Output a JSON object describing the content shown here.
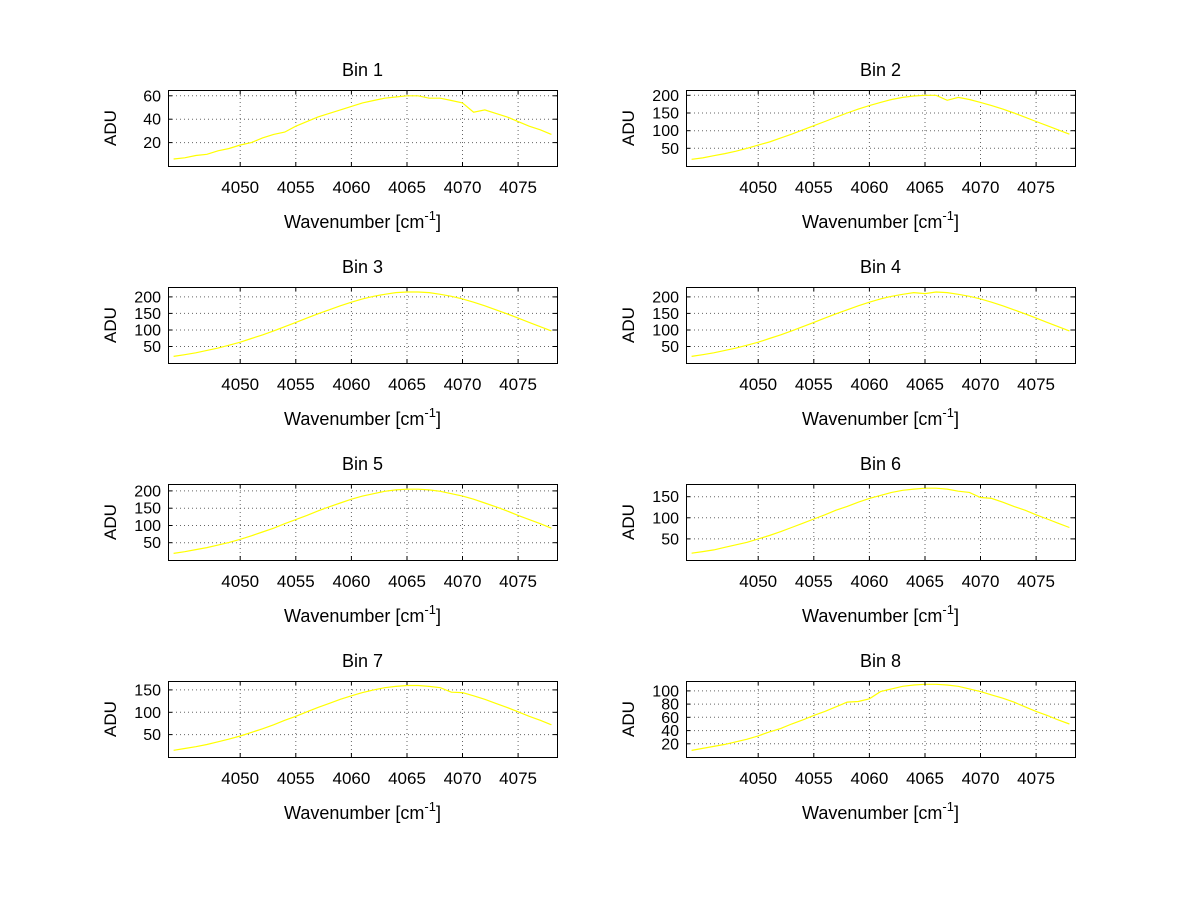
{
  "colors": {
    "background": "#ffffff",
    "line": "#ffff00",
    "axis": "#000000",
    "grid": "#666666",
    "text": "#000000"
  },
  "chart_data": {
    "type": "line",
    "layout": "4 rows x 2 columns of subplots, grid on, dotted gridlines, yellow data line",
    "ylabel": "ADU",
    "xlabel": {
      "text": "Wavenumber [cm",
      "superscript": "-1",
      "suffix": "]"
    },
    "xlim": [
      4043.5,
      4078.5
    ],
    "xticks": [
      4050,
      4055,
      4060,
      4065,
      4070,
      4075
    ],
    "x": [
      4044,
      4045,
      4046,
      4047,
      4048,
      4049,
      4050,
      4051,
      4052,
      4053,
      4054,
      4055,
      4056,
      4057,
      4058,
      4059,
      4060,
      4061,
      4062,
      4063,
      4064,
      4065,
      4066,
      4067,
      4068,
      4069,
      4070,
      4071,
      4072,
      4073,
      4074,
      4075,
      4076,
      4077,
      4078
    ],
    "subplots": [
      {
        "title": "Bin 1",
        "ylim": [
          0,
          65
        ],
        "yticks": [
          20,
          40,
          60
        ],
        "values": [
          6,
          7,
          9,
          10,
          13,
          15,
          18,
          20,
          24,
          27,
          29,
          34,
          38,
          42,
          45,
          48,
          51,
          54,
          56,
          58,
          59,
          60,
          60,
          58,
          58,
          56,
          54,
          46,
          48,
          45,
          42,
          38,
          34,
          31,
          27
        ]
      },
      {
        "title": "Bin 2",
        "ylim": [
          0,
          215
        ],
        "yticks": [
          50,
          100,
          150,
          200
        ],
        "values": [
          19,
          23,
          29,
          35,
          42,
          50,
          59,
          68,
          79,
          90,
          102,
          114,
          126,
          138,
          150,
          161,
          171,
          180,
          188,
          194,
          198,
          200,
          200,
          186,
          194,
          188,
          180,
          171,
          161,
          150,
          138,
          126,
          114,
          102,
          90
        ]
      },
      {
        "title": "Bin 3",
        "ylim": [
          0,
          230
        ],
        "yticks": [
          50,
          100,
          150,
          200
        ],
        "values": [
          20,
          25,
          31,
          38,
          45,
          54,
          63,
          74,
          85,
          97,
          110,
          123,
          136,
          149,
          161,
          173,
          184,
          194,
          202,
          208,
          213,
          215,
          215,
          213,
          208,
          202,
          194,
          184,
          173,
          161,
          149,
          136,
          123,
          110,
          97
        ]
      },
      {
        "title": "Bin 4",
        "ylim": [
          0,
          230
        ],
        "yticks": [
          50,
          100,
          150,
          200
        ],
        "values": [
          20,
          25,
          31,
          38,
          45,
          54,
          63,
          74,
          85,
          97,
          110,
          123,
          136,
          149,
          161,
          173,
          184,
          194,
          202,
          208,
          213,
          210,
          215,
          213,
          208,
          202,
          194,
          184,
          173,
          161,
          149,
          136,
          123,
          110,
          97
        ]
      },
      {
        "title": "Bin 5",
        "ylim": [
          0,
          220
        ],
        "yticks": [
          50,
          100,
          150,
          200
        ],
        "values": [
          19,
          24,
          30,
          36,
          43,
          51,
          60,
          70,
          81,
          92,
          105,
          117,
          129,
          142,
          154,
          165,
          176,
          185,
          192,
          199,
          203,
          205,
          205,
          203,
          199,
          192,
          185,
          176,
          165,
          154,
          142,
          129,
          117,
          105,
          92
        ]
      },
      {
        "title": "Bin 6",
        "ylim": [
          0,
          180
        ],
        "yticks": [
          50,
          100,
          150
        ],
        "values": [
          16,
          20,
          24,
          30,
          36,
          42,
          50,
          58,
          67,
          77,
          87,
          97,
          107,
          118,
          127,
          137,
          146,
          153,
          160,
          165,
          168,
          170,
          170,
          168,
          163,
          160,
          148,
          146,
          137,
          127,
          118,
          107,
          97,
          87,
          77
        ]
      },
      {
        "title": "Bin 7",
        "ylim": [
          0,
          170
        ],
        "yticks": [
          50,
          100,
          150
        ],
        "values": [
          15,
          19,
          23,
          28,
          34,
          40,
          47,
          55,
          63,
          72,
          82,
          91,
          101,
          111,
          120,
          129,
          137,
          144,
          150,
          155,
          158,
          160,
          160,
          158,
          155,
          145,
          144,
          137,
          129,
          120,
          111,
          101,
          91,
          82,
          72
        ]
      },
      {
        "title": "Bin 8",
        "ylim": [
          0,
          115
        ],
        "yticks": [
          20,
          40,
          60,
          80,
          100
        ],
        "values": [
          10,
          13,
          16,
          19,
          23,
          27,
          32,
          38,
          43,
          50,
          56,
          63,
          69,
          76,
          83,
          84,
          88,
          99,
          103,
          107,
          109,
          110,
          110,
          109,
          107,
          103,
          99,
          94,
          89,
          83,
          76,
          69,
          63,
          56,
          50
        ]
      }
    ]
  }
}
